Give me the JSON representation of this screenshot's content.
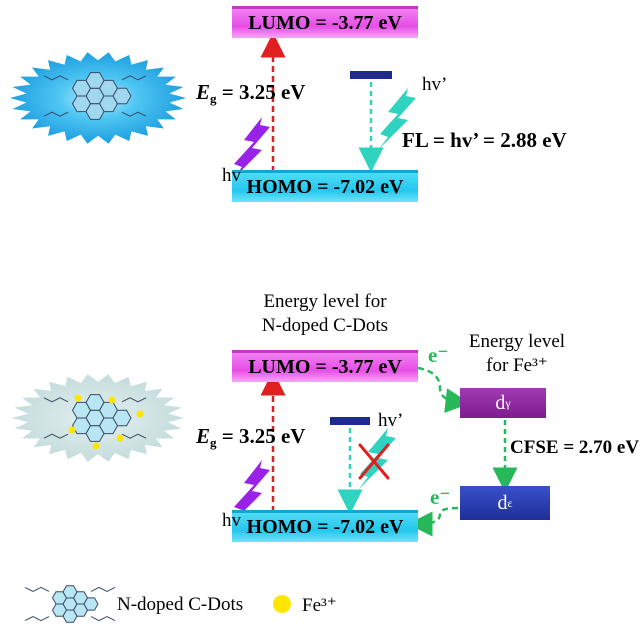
{
  "top": {
    "lumo": "LUMO = -3.77 eV",
    "homo": "HOMO = -7.02 eV",
    "eg_symbol": "E",
    "eg_sub": "g",
    "eg_value": " = 3.25 eV",
    "hv": "hv",
    "hv_prime": "hv’",
    "fl": "FL = hv’ = 2.88 eV"
  },
  "bottom": {
    "title_line1": "Energy level for",
    "title_line2": "N-doped C-Dots",
    "lumo": "LUMO = -3.77 eV",
    "homo": "HOMO = -7.02 eV",
    "eg_symbol": "E",
    "eg_sub": "g",
    "eg_value": " = 3.25 eV",
    "hv": "hv",
    "hv_prime": "hv’",
    "fe_title_line1": "Energy level",
    "fe_title_line2": "for Fe³⁺",
    "e_top": "e⁻",
    "e_bottom": "e⁻",
    "d_gamma_main": "d",
    "d_gamma_sub": "γ",
    "d_eps_main": "d",
    "d_eps_sub": "ε",
    "cfse": "CFSE = 2.70 eV"
  },
  "legend": {
    "cdots_label": "N-doped C-Dots",
    "fe_label": "Fe³⁺"
  },
  "colors": {
    "lumo_fill": "#e64ee6",
    "homo_fill": "#23c7ee",
    "excitation_arrow": "#e02020",
    "emission_arrow": "#2fd3c0",
    "electron_arrow": "#27b85a",
    "lightning_hv": "#9a22e8",
    "lightning_hv_prime": "#2fd3c0",
    "quench_cross": "#e02020",
    "fe_dot": "#ffe600"
  }
}
